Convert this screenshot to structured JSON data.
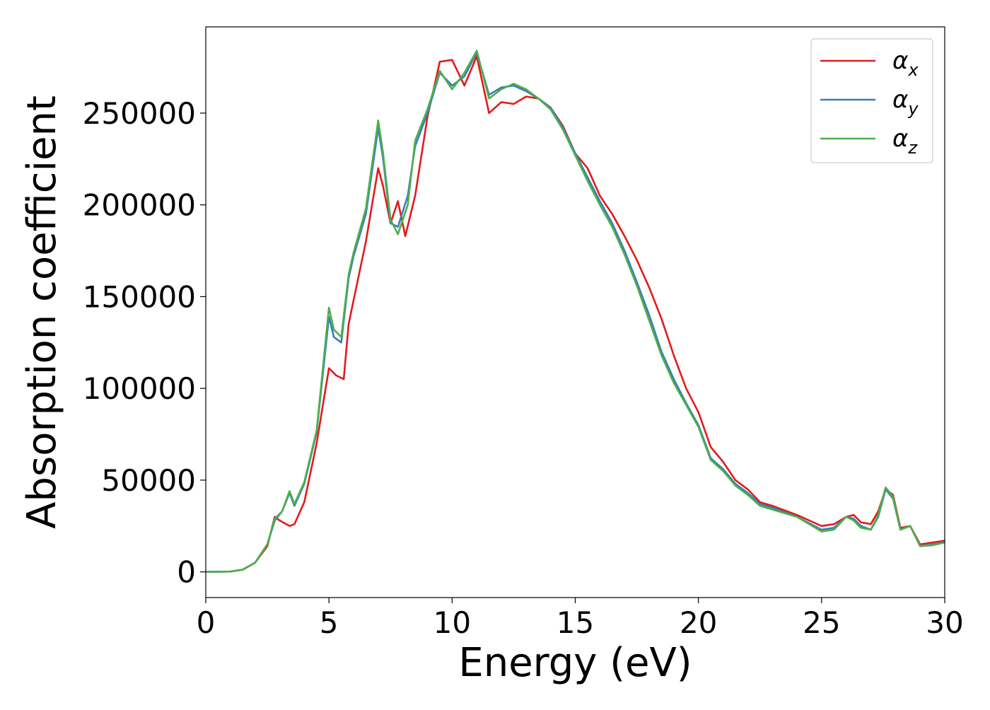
{
  "chart_data": {
    "type": "line",
    "title": "",
    "xlabel": "Energy (eV)",
    "ylabel": "Absorption coefficient",
    "xlim": [
      0,
      30
    ],
    "ylim": [
      -14000,
      297000
    ],
    "xticks": [
      0,
      5,
      10,
      15,
      20,
      25,
      30
    ],
    "yticks": [
      0,
      50000,
      100000,
      150000,
      200000,
      250000
    ],
    "grid": false,
    "legend_position": "upper right",
    "series": [
      {
        "name": "α_x",
        "legend_base": "α",
        "legend_sub": "x",
        "color": "#e41a1c",
        "x": [
          0,
          1,
          1.5,
          2,
          2.5,
          2.8,
          3.0,
          3.4,
          3.6,
          4.0,
          4.5,
          5.0,
          5.3,
          5.6,
          5.8,
          6.0,
          6.5,
          7.0,
          7.2,
          7.5,
          7.8,
          8.1,
          8.5,
          9.0,
          9.5,
          10.0,
          10.5,
          11.0,
          11.5,
          12.0,
          12.5,
          13.0,
          13.5,
          14.0,
          14.5,
          15.0,
          15.5,
          16.0,
          16.5,
          17.0,
          17.5,
          18.0,
          18.5,
          19.0,
          19.5,
          20.0,
          20.5,
          21.0,
          21.5,
          22.0,
          22.5,
          23.0,
          24.0,
          25.0,
          25.5,
          26.0,
          26.3,
          26.6,
          27.0,
          27.3,
          27.6,
          27.9,
          28.2,
          28.6,
          29.0,
          29.5,
          30.0
        ],
        "y": [
          0,
          200,
          1200,
          5000,
          14000,
          30000,
          28000,
          25000,
          26000,
          38000,
          70000,
          111000,
          107000,
          105000,
          135000,
          148000,
          180000,
          220000,
          210000,
          190000,
          202000,
          183000,
          205000,
          248000,
          278000,
          279000,
          265000,
          281000,
          250000,
          256000,
          255000,
          259000,
          258000,
          253000,
          243000,
          228000,
          220000,
          205000,
          195000,
          183000,
          170000,
          155000,
          138000,
          118000,
          100000,
          87000,
          68000,
          60000,
          50000,
          45000,
          38000,
          36000,
          31000,
          25000,
          26000,
          30000,
          31000,
          27000,
          26000,
          33000,
          45000,
          42000,
          24000,
          25000,
          15000,
          16000,
          17000
        ]
      },
      {
        "name": "α_y",
        "legend_base": "α",
        "legend_sub": "y",
        "color": "#377eb8",
        "x": [
          0,
          1,
          1.5,
          2,
          2.5,
          2.8,
          3.1,
          3.4,
          3.6,
          4.0,
          4.5,
          5.0,
          5.2,
          5.5,
          5.8,
          6.0,
          6.5,
          7.0,
          7.2,
          7.5,
          7.8,
          8.2,
          8.5,
          9.0,
          9.5,
          10.0,
          10.5,
          11.0,
          11.5,
          12.0,
          12.5,
          13.0,
          13.5,
          14.0,
          14.5,
          15.0,
          15.5,
          16.0,
          16.5,
          17.0,
          17.5,
          18.0,
          18.5,
          19.0,
          19.5,
          20.0,
          20.5,
          21.0,
          21.5,
          22.0,
          22.5,
          23.0,
          24.0,
          25.0,
          25.5,
          26.0,
          26.3,
          26.6,
          27.0,
          27.3,
          27.6,
          27.9,
          28.2,
          28.6,
          29.0,
          29.5,
          30.0
        ],
        "y": [
          0,
          200,
          1200,
          5000,
          15000,
          28000,
          33000,
          43000,
          36000,
          48000,
          76000,
          139000,
          128000,
          125000,
          160000,
          172000,
          195000,
          242000,
          225000,
          190000,
          188000,
          205000,
          232000,
          250000,
          272000,
          265000,
          270000,
          283000,
          260000,
          264000,
          265000,
          262000,
          258000,
          253000,
          242000,
          228000,
          215000,
          202000,
          190000,
          175000,
          158000,
          140000,
          120000,
          105000,
          92000,
          80000,
          62000,
          56000,
          48000,
          43000,
          37000,
          35000,
          30000,
          23000,
          24000,
          30000,
          29000,
          25000,
          23000,
          30000,
          45000,
          40000,
          23000,
          25000,
          14000,
          15000,
          16000
        ]
      },
      {
        "name": "α_z",
        "legend_base": "α",
        "legend_sub": "z",
        "color": "#4daf4a",
        "x": [
          0,
          1,
          1.5,
          2,
          2.5,
          2.8,
          3.1,
          3.4,
          3.6,
          4.0,
          4.5,
          5.0,
          5.2,
          5.5,
          5.8,
          6.0,
          6.5,
          7.0,
          7.2,
          7.5,
          7.8,
          8.2,
          8.5,
          9.0,
          9.5,
          10.0,
          10.5,
          11.0,
          11.5,
          12.0,
          12.5,
          13.0,
          13.5,
          14.0,
          14.5,
          15.0,
          15.5,
          16.0,
          16.5,
          17.0,
          17.5,
          18.0,
          18.5,
          19.0,
          19.5,
          20.0,
          20.5,
          21.0,
          21.5,
          22.0,
          22.5,
          23.0,
          24.0,
          25.0,
          25.5,
          26.0,
          26.3,
          26.6,
          27.0,
          27.3,
          27.6,
          27.9,
          28.2,
          28.6,
          29.0,
          29.5,
          30.0
        ],
        "y": [
          0,
          200,
          1200,
          5000,
          15000,
          29000,
          33000,
          44000,
          37000,
          49000,
          77000,
          144000,
          132000,
          128000,
          162000,
          174000,
          198000,
          246000,
          228000,
          192000,
          184000,
          200000,
          235000,
          252000,
          273000,
          263000,
          272000,
          284000,
          258000,
          263000,
          266000,
          263000,
          258000,
          252000,
          241000,
          227000,
          213000,
          200000,
          188000,
          173000,
          156000,
          137000,
          118000,
          103000,
          91000,
          79000,
          61000,
          55000,
          47000,
          42000,
          36000,
          34000,
          30000,
          22000,
          23000,
          30000,
          28000,
          24000,
          23000,
          31000,
          46000,
          41000,
          23000,
          25000,
          14000,
          14500,
          16000
        ]
      }
    ]
  }
}
